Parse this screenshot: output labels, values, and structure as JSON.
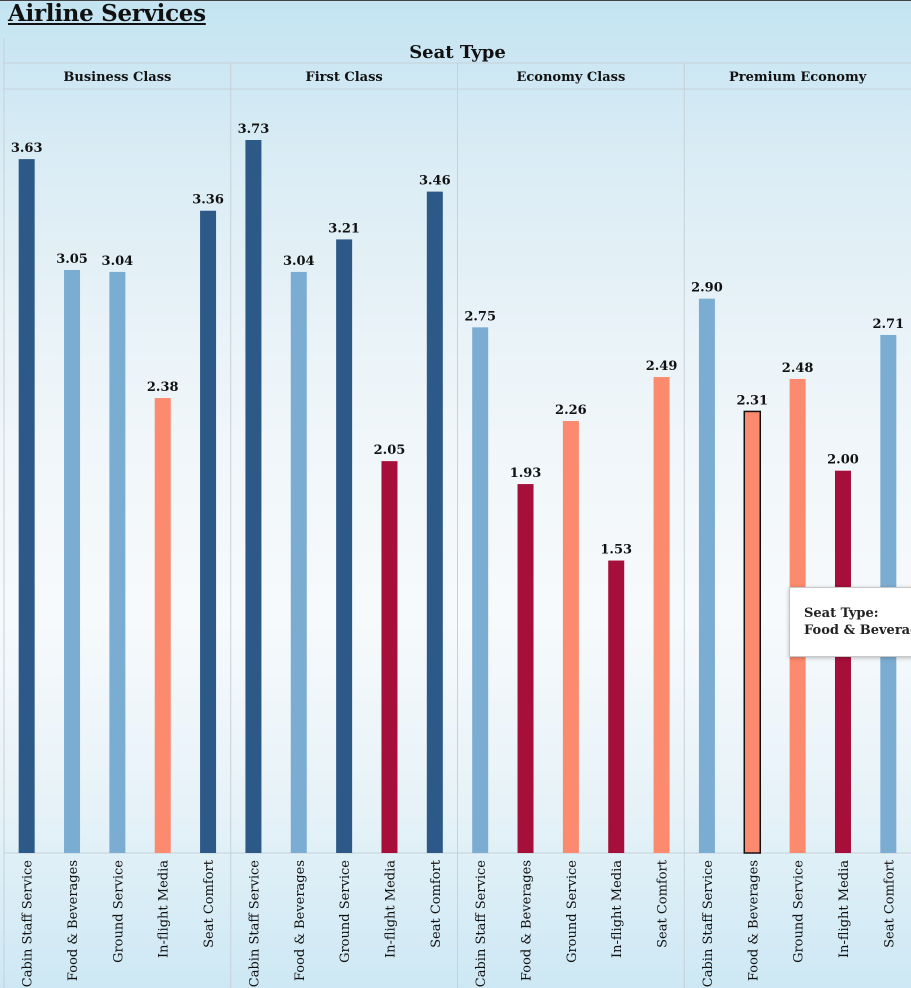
{
  "app_title": "Airline Services",
  "chart_data": {
    "type": "bar",
    "title": "Seat Type",
    "panels": [
      {
        "name": "Business Class",
        "categories": [
          "Cabin Staff Service",
          "Food & Beverages",
          "Ground Service",
          "In-flight Media",
          "Seat Comfort"
        ],
        "values": [
          3.63,
          3.05,
          3.04,
          2.38,
          3.36
        ]
      },
      {
        "name": "First Class",
        "categories": [
          "Cabin Staff Service",
          "Food & Beverages",
          "Ground Service",
          "In-flight Media",
          "Seat Comfort"
        ],
        "values": [
          3.73,
          3.04,
          3.21,
          2.05,
          3.46
        ]
      },
      {
        "name": "Economy Class",
        "categories": [
          "Cabin Staff Service",
          "Food & Beverages",
          "Ground Service",
          "In-flight Media",
          "Seat Comfort"
        ],
        "values": [
          2.75,
          1.93,
          2.26,
          1.53,
          2.49
        ]
      },
      {
        "name": "Premium Economy",
        "categories": [
          "Cabin Staff Service",
          "Food & Beverages",
          "Ground Service",
          "In-flight Media",
          "Seat Comfort"
        ],
        "values": [
          2.9,
          2.31,
          2.48,
          2.0,
          2.71
        ]
      }
    ],
    "value_format": "0.00",
    "ylim": [
      0,
      3.73
    ],
    "grid": false,
    "legend": "none",
    "color_scale": {
      "low": "#a50f3a",
      "mid_low": "#fb8a6e",
      "mid_high": "#7badd3",
      "high": "#2c5987"
    },
    "highlighted": {
      "panel": "Premium Economy",
      "category": "Food & Beverages"
    }
  },
  "tooltip": {
    "line1": "Seat Type:",
    "line2": "Food & Beverages"
  }
}
